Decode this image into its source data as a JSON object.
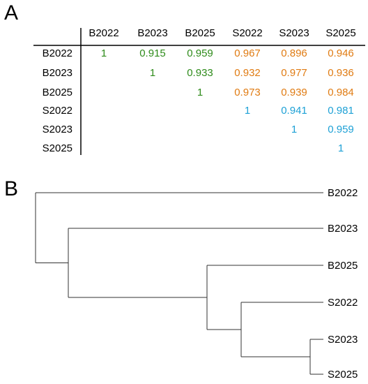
{
  "panels": {
    "a": "A",
    "b": "B"
  },
  "matrix": {
    "labels": [
      "B2022",
      "B2023",
      "B2025",
      "S2022",
      "S2023",
      "S2025"
    ],
    "colors": {
      "green": "#2e8b1a",
      "orange": "#e07b12",
      "blue": "#1ea1d6"
    },
    "cells": [
      [
        {
          "v": "1",
          "c": "green"
        },
        {
          "v": "0.915",
          "c": "green"
        },
        {
          "v": "0.959",
          "c": "green"
        },
        {
          "v": "0.967",
          "c": "orange"
        },
        {
          "v": "0.896",
          "c": "orange"
        },
        {
          "v": "0.946",
          "c": "orange"
        }
      ],
      [
        null,
        {
          "v": "1",
          "c": "green"
        },
        {
          "v": "0.933",
          "c": "green"
        },
        {
          "v": "0.932",
          "c": "orange"
        },
        {
          "v": "0.977",
          "c": "orange"
        },
        {
          "v": "0.936",
          "c": "orange"
        }
      ],
      [
        null,
        null,
        {
          "v": "1",
          "c": "green"
        },
        {
          "v": "0.973",
          "c": "orange"
        },
        {
          "v": "0.939",
          "c": "orange"
        },
        {
          "v": "0.984",
          "c": "orange"
        }
      ],
      [
        null,
        null,
        null,
        {
          "v": "1",
          "c": "blue"
        },
        {
          "v": "0.941",
          "c": "blue"
        },
        {
          "v": "0.981",
          "c": "blue"
        }
      ],
      [
        null,
        null,
        null,
        null,
        {
          "v": "1",
          "c": "blue"
        },
        {
          "v": "0.959",
          "c": "blue"
        }
      ],
      [
        null,
        null,
        null,
        null,
        null,
        {
          "v": "1",
          "c": "blue"
        }
      ]
    ]
  },
  "dendrogram": {
    "leaves": [
      "B2022",
      "B2023",
      "B2025",
      "S2022",
      "S2023",
      "S2025"
    ]
  }
}
